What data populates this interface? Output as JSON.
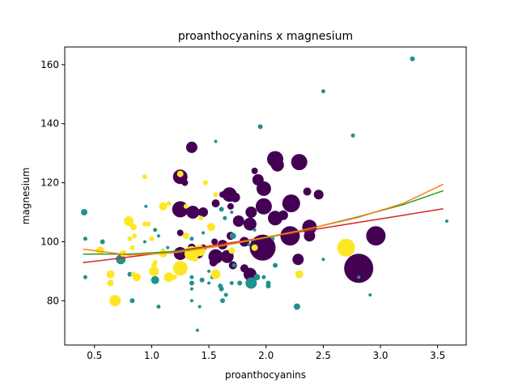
{
  "chart_data": {
    "type": "scatter",
    "title": "proanthocyanins x magnesium",
    "xlabel": "proanthocyanins",
    "ylabel": "magnesium",
    "xlim": [
      0.24,
      3.75
    ],
    "ylim": [
      65,
      166
    ],
    "xticks": [
      0.5,
      1.0,
      1.5,
      2.0,
      2.5,
      3.0,
      3.5
    ],
    "xtick_labels": [
      "0.5",
      "1.0",
      "1.5",
      "2.0",
      "2.5",
      "3.0",
      "3.5"
    ],
    "yticks": [
      80,
      100,
      120,
      140,
      160
    ],
    "ytick_labels": [
      "80",
      "100",
      "120",
      "140",
      "160"
    ],
    "grid": false,
    "legend": "none",
    "colors": {
      "class_0": "#440154",
      "class_1": "#21918c",
      "class_2": "#fde725"
    },
    "series": [
      {
        "color": "#440154",
        "points": [
          {
            "x": 1.35,
            "y": 132,
            "s": 7
          },
          {
            "x": 2.08,
            "y": 128,
            "s": 10
          },
          {
            "x": 2.29,
            "y": 127,
            "s": 10
          },
          {
            "x": 2.1,
            "y": 126,
            "s": 8
          },
          {
            "x": 1.25,
            "y": 122,
            "s": 9
          },
          {
            "x": 1.9,
            "y": 124,
            "s": 4
          },
          {
            "x": 1.93,
            "y": 121,
            "s": 7
          },
          {
            "x": 1.98,
            "y": 118,
            "s": 9
          },
          {
            "x": 2.36,
            "y": 117,
            "s": 5
          },
          {
            "x": 2.46,
            "y": 116,
            "s": 6
          },
          {
            "x": 1.68,
            "y": 116,
            "s": 9
          },
          {
            "x": 1.73,
            "y": 115,
            "s": 6
          },
          {
            "x": 1.25,
            "y": 111,
            "s": 10
          },
          {
            "x": 1.36,
            "y": 110,
            "s": 8
          },
          {
            "x": 2.22,
            "y": 113,
            "s": 11
          },
          {
            "x": 1.98,
            "y": 112,
            "s": 10
          },
          {
            "x": 1.56,
            "y": 113,
            "s": 5
          },
          {
            "x": 1.45,
            "y": 110,
            "s": 6
          },
          {
            "x": 1.87,
            "y": 110,
            "s": 7
          },
          {
            "x": 2.08,
            "y": 108,
            "s": 9
          },
          {
            "x": 2.15,
            "y": 109,
            "s": 6
          },
          {
            "x": 1.76,
            "y": 107,
            "s": 7
          },
          {
            "x": 1.86,
            "y": 106,
            "s": 8
          },
          {
            "x": 2.38,
            "y": 105,
            "s": 9
          },
          {
            "x": 2.38,
            "y": 102,
            "s": 7
          },
          {
            "x": 2.21,
            "y": 102,
            "s": 12
          },
          {
            "x": 1.97,
            "y": 101,
            "s": 5
          },
          {
            "x": 1.69,
            "y": 102,
            "s": 5
          },
          {
            "x": 1.81,
            "y": 100,
            "s": 6
          },
          {
            "x": 1.62,
            "y": 99,
            "s": 6
          },
          {
            "x": 1.97,
            "y": 98,
            "s": 16
          },
          {
            "x": 2.96,
            "y": 102,
            "s": 12
          },
          {
            "x": 2.81,
            "y": 91,
            "s": 18
          },
          {
            "x": 1.25,
            "y": 96,
            "s": 8
          },
          {
            "x": 1.35,
            "y": 98,
            "s": 5
          },
          {
            "x": 1.41,
            "y": 96,
            "s": 6
          },
          {
            "x": 1.56,
            "y": 95,
            "s": 9
          },
          {
            "x": 1.66,
            "y": 95,
            "s": 8
          },
          {
            "x": 2.28,
            "y": 94,
            "s": 7
          },
          {
            "x": 1.54,
            "y": 93,
            "s": 5
          },
          {
            "x": 1.71,
            "y": 92,
            "s": 5
          },
          {
            "x": 1.86,
            "y": 89,
            "s": 8
          },
          {
            "x": 1.81,
            "y": 91,
            "s": 5
          },
          {
            "x": 1.45,
            "y": 98,
            "s": 4
          },
          {
            "x": 1.55,
            "y": 100,
            "s": 4
          },
          {
            "x": 1.25,
            "y": 103,
            "s": 4
          },
          {
            "x": 1.69,
            "y": 112,
            "s": 4
          },
          {
            "x": 1.4,
            "y": 110,
            "s": 4
          },
          {
            "x": 1.62,
            "y": 116,
            "s": 4
          },
          {
            "x": 1.29,
            "y": 120,
            "s": 4
          }
        ]
      },
      {
        "color": "#21918c",
        "points": [
          {
            "x": 3.28,
            "y": 162,
            "s": 3
          },
          {
            "x": 2.5,
            "y": 151,
            "s": 2.5
          },
          {
            "x": 1.95,
            "y": 139,
            "s": 3
          },
          {
            "x": 2.76,
            "y": 136,
            "s": 2.5
          },
          {
            "x": 1.56,
            "y": 134,
            "s": 2
          },
          {
            "x": 0.41,
            "y": 110,
            "s": 4
          },
          {
            "x": 3.58,
            "y": 107,
            "s": 2
          },
          {
            "x": 0.42,
            "y": 101,
            "s": 2.5
          },
          {
            "x": 0.57,
            "y": 100,
            "s": 3
          },
          {
            "x": 0.73,
            "y": 94,
            "s": 6
          },
          {
            "x": 0.42,
            "y": 88,
            "s": 2.5
          },
          {
            "x": 0.81,
            "y": 89,
            "s": 3
          },
          {
            "x": 0.83,
            "y": 80,
            "s": 3
          },
          {
            "x": 1.03,
            "y": 87,
            "s": 5
          },
          {
            "x": 1.06,
            "y": 78,
            "s": 2.5
          },
          {
            "x": 1.03,
            "y": 104,
            "s": 2.5
          },
          {
            "x": 1.06,
            "y": 102,
            "s": 2
          },
          {
            "x": 1.14,
            "y": 98,
            "s": 2
          },
          {
            "x": 1.1,
            "y": 97,
            "s": 2
          },
          {
            "x": 0.95,
            "y": 112,
            "s": 2
          },
          {
            "x": 1.35,
            "y": 88,
            "s": 2.5
          },
          {
            "x": 1.35,
            "y": 86,
            "s": 3
          },
          {
            "x": 1.35,
            "y": 84,
            "s": 2
          },
          {
            "x": 1.35,
            "y": 80,
            "s": 2
          },
          {
            "x": 1.4,
            "y": 70,
            "s": 2
          },
          {
            "x": 1.42,
            "y": 78,
            "s": 2
          },
          {
            "x": 1.5,
            "y": 90,
            "s": 2
          },
          {
            "x": 1.44,
            "y": 87,
            "s": 3
          },
          {
            "x": 1.5,
            "y": 86,
            "s": 2
          },
          {
            "x": 1.53,
            "y": 88,
            "s": 2.5
          },
          {
            "x": 1.6,
            "y": 85,
            "s": 3
          },
          {
            "x": 1.61,
            "y": 84,
            "s": 3
          },
          {
            "x": 1.62,
            "y": 80,
            "s": 3
          },
          {
            "x": 1.65,
            "y": 82,
            "s": 2.5
          },
          {
            "x": 1.7,
            "y": 86,
            "s": 2.5
          },
          {
            "x": 1.72,
            "y": 92,
            "s": 2.5
          },
          {
            "x": 1.77,
            "y": 86,
            "s": 3
          },
          {
            "x": 1.87,
            "y": 86,
            "s": 7
          },
          {
            "x": 1.92,
            "y": 88,
            "s": 4
          },
          {
            "x": 1.98,
            "y": 88,
            "s": 2.5
          },
          {
            "x": 2.02,
            "y": 86,
            "s": 3
          },
          {
            "x": 2.02,
            "y": 85,
            "s": 3
          },
          {
            "x": 2.08,
            "y": 92,
            "s": 3
          },
          {
            "x": 2.27,
            "y": 78,
            "s": 4
          },
          {
            "x": 2.5,
            "y": 94,
            "s": 2
          },
          {
            "x": 2.91,
            "y": 82,
            "s": 2
          },
          {
            "x": 2.81,
            "y": 88,
            "s": 2
          },
          {
            "x": 1.71,
            "y": 102,
            "s": 4
          },
          {
            "x": 1.64,
            "y": 108,
            "s": 2.5
          },
          {
            "x": 1.7,
            "y": 110,
            "s": 2
          },
          {
            "x": 1.61,
            "y": 111,
            "s": 3
          },
          {
            "x": 1.9,
            "y": 104,
            "s": 2
          },
          {
            "x": 2.06,
            "y": 101,
            "s": 2
          },
          {
            "x": 1.85,
            "y": 99,
            "s": 2
          },
          {
            "x": 1.35,
            "y": 101,
            "s": 2.5
          },
          {
            "x": 1.45,
            "y": 103,
            "s": 2
          },
          {
            "x": 0.94,
            "y": 100,
            "s": 2
          }
        ]
      },
      {
        "color": "#fde725",
        "points": [
          {
            "x": 0.94,
            "y": 122,
            "s": 3
          },
          {
            "x": 1.25,
            "y": 123,
            "s": 4
          },
          {
            "x": 1.47,
            "y": 120,
            "s": 3
          },
          {
            "x": 1.56,
            "y": 116,
            "s": 3
          },
          {
            "x": 1.1,
            "y": 112,
            "s": 5
          },
          {
            "x": 1.15,
            "y": 113,
            "s": 3
          },
          {
            "x": 1.3,
            "y": 112,
            "s": 3
          },
          {
            "x": 0.8,
            "y": 107,
            "s": 6
          },
          {
            "x": 0.84,
            "y": 105,
            "s": 4
          },
          {
            "x": 0.94,
            "y": 106,
            "s": 3
          },
          {
            "x": 0.97,
            "y": 106,
            "s": 3
          },
          {
            "x": 1.43,
            "y": 108,
            "s": 3
          },
          {
            "x": 1.52,
            "y": 105,
            "s": 5
          },
          {
            "x": 0.81,
            "y": 101,
            "s": 3
          },
          {
            "x": 0.83,
            "y": 98,
            "s": 3
          },
          {
            "x": 0.55,
            "y": 97,
            "s": 5
          },
          {
            "x": 0.75,
            "y": 96,
            "s": 4
          },
          {
            "x": 1.0,
            "y": 101,
            "s": 3
          },
          {
            "x": 1.03,
            "y": 93,
            "s": 3
          },
          {
            "x": 1.1,
            "y": 96,
            "s": 5
          },
          {
            "x": 1.3,
            "y": 102,
            "s": 4
          },
          {
            "x": 1.35,
            "y": 96,
            "s": 9
          },
          {
            "x": 1.42,
            "y": 97,
            "s": 7
          },
          {
            "x": 1.25,
            "y": 91,
            "s": 9
          },
          {
            "x": 1.02,
            "y": 90,
            "s": 6
          },
          {
            "x": 1.02,
            "y": 92,
            "s": 3
          },
          {
            "x": 0.87,
            "y": 88,
            "s": 5
          },
          {
            "x": 0.84,
            "y": 89,
            "s": 3
          },
          {
            "x": 0.64,
            "y": 89,
            "s": 5
          },
          {
            "x": 0.64,
            "y": 86,
            "s": 4
          },
          {
            "x": 0.68,
            "y": 80,
            "s": 7
          },
          {
            "x": 1.15,
            "y": 88,
            "s": 6
          },
          {
            "x": 1.2,
            "y": 88,
            "s": 3
          },
          {
            "x": 1.56,
            "y": 89,
            "s": 6
          },
          {
            "x": 2.29,
            "y": 89,
            "s": 5
          },
          {
            "x": 2.7,
            "y": 98,
            "s": 11
          },
          {
            "x": 1.9,
            "y": 98,
            "s": 4
          },
          {
            "x": 1.7,
            "y": 97,
            "s": 4
          },
          {
            "x": 1.38,
            "y": 94,
            "s": 3
          },
          {
            "x": 0.85,
            "y": 102,
            "s": 3
          }
        ]
      }
    ],
    "curves": [
      {
        "color": "#d62728",
        "x": [
          0.4,
          0.8,
          1.2,
          1.6,
          2.0,
          2.4,
          2.8,
          3.2,
          3.55
        ],
        "y": [
          92.9,
          94.8,
          96.8,
          99.1,
          101.5,
          104,
          106.5,
          109,
          111.2
        ]
      },
      {
        "color": "#2ca02c",
        "x": [
          0.4,
          0.8,
          1.2,
          1.6,
          2.0,
          2.4,
          2.8,
          3.2,
          3.55
        ],
        "y": [
          95.8,
          95.8,
          96.7,
          98.5,
          101.3,
          104.6,
          108.4,
          112.6,
          117.3
        ]
      },
      {
        "color": "#ff7f0e",
        "x": [
          0.4,
          0.8,
          1.2,
          1.6,
          2.0,
          2.4,
          2.8,
          3.2,
          3.55
        ],
        "y": [
          97.5,
          95.5,
          96.3,
          98.6,
          101.5,
          104.6,
          108.2,
          113,
          119.5
        ]
      }
    ]
  }
}
